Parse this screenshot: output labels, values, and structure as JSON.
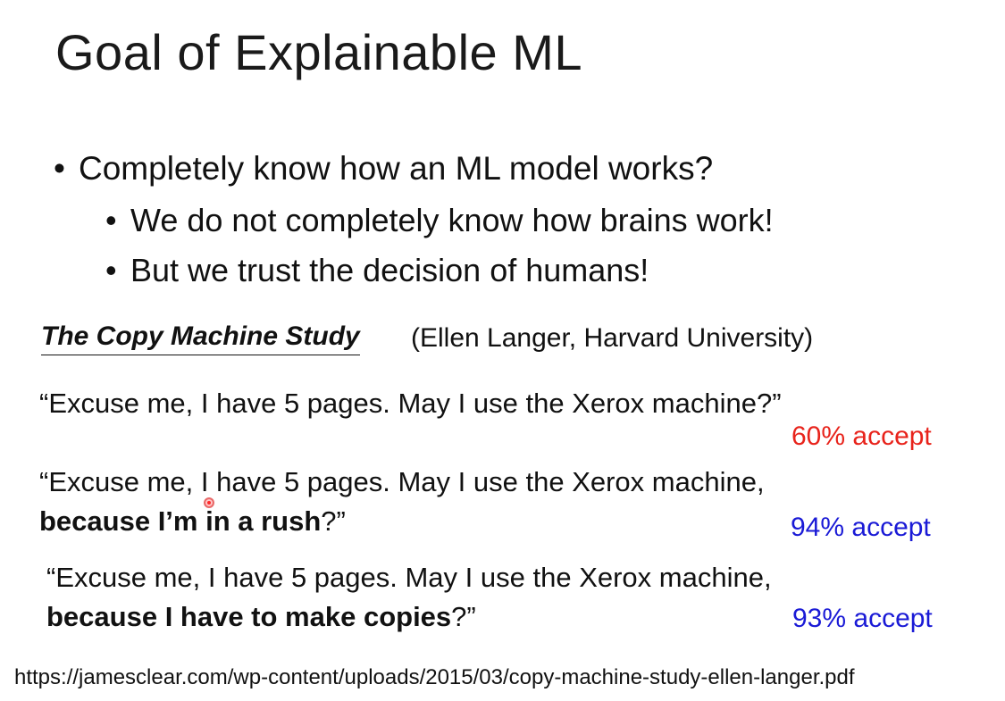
{
  "title": "Goal of Explainable ML",
  "bullets": {
    "main": "Completely know how an ML model works?",
    "sub1": "We do not completely know how brains work!",
    "sub2": "But we trust the decision of humans!"
  },
  "study": {
    "title": "The Copy Machine Study",
    "source": "(Ellen Langer, Harvard University)"
  },
  "quotes": [
    {
      "line1": "“Excuse me, I have 5 pages. May I use the Xerox machine?”",
      "accept": "60% accept",
      "accept_color": "#e8231b"
    },
    {
      "line1": "“Excuse me, I have 5 pages. May I use the Xerox machine,",
      "reason": "because I’m in a rush",
      "tail": "?”",
      "accept": "94% accept",
      "accept_color": "#1a1ad6"
    },
    {
      "line1": "“Excuse me, I have 5 pages. May I use the Xerox machine,",
      "reason": "because I have to make copies",
      "tail": "?”",
      "accept": "93% accept",
      "accept_color": "#1a1ad6"
    }
  ],
  "footer_url": "https://jamesclear.com/wp-content/uploads/2015/03/copy-machine-study-ellen-langer.pdf",
  "bullet_glyph": "•"
}
